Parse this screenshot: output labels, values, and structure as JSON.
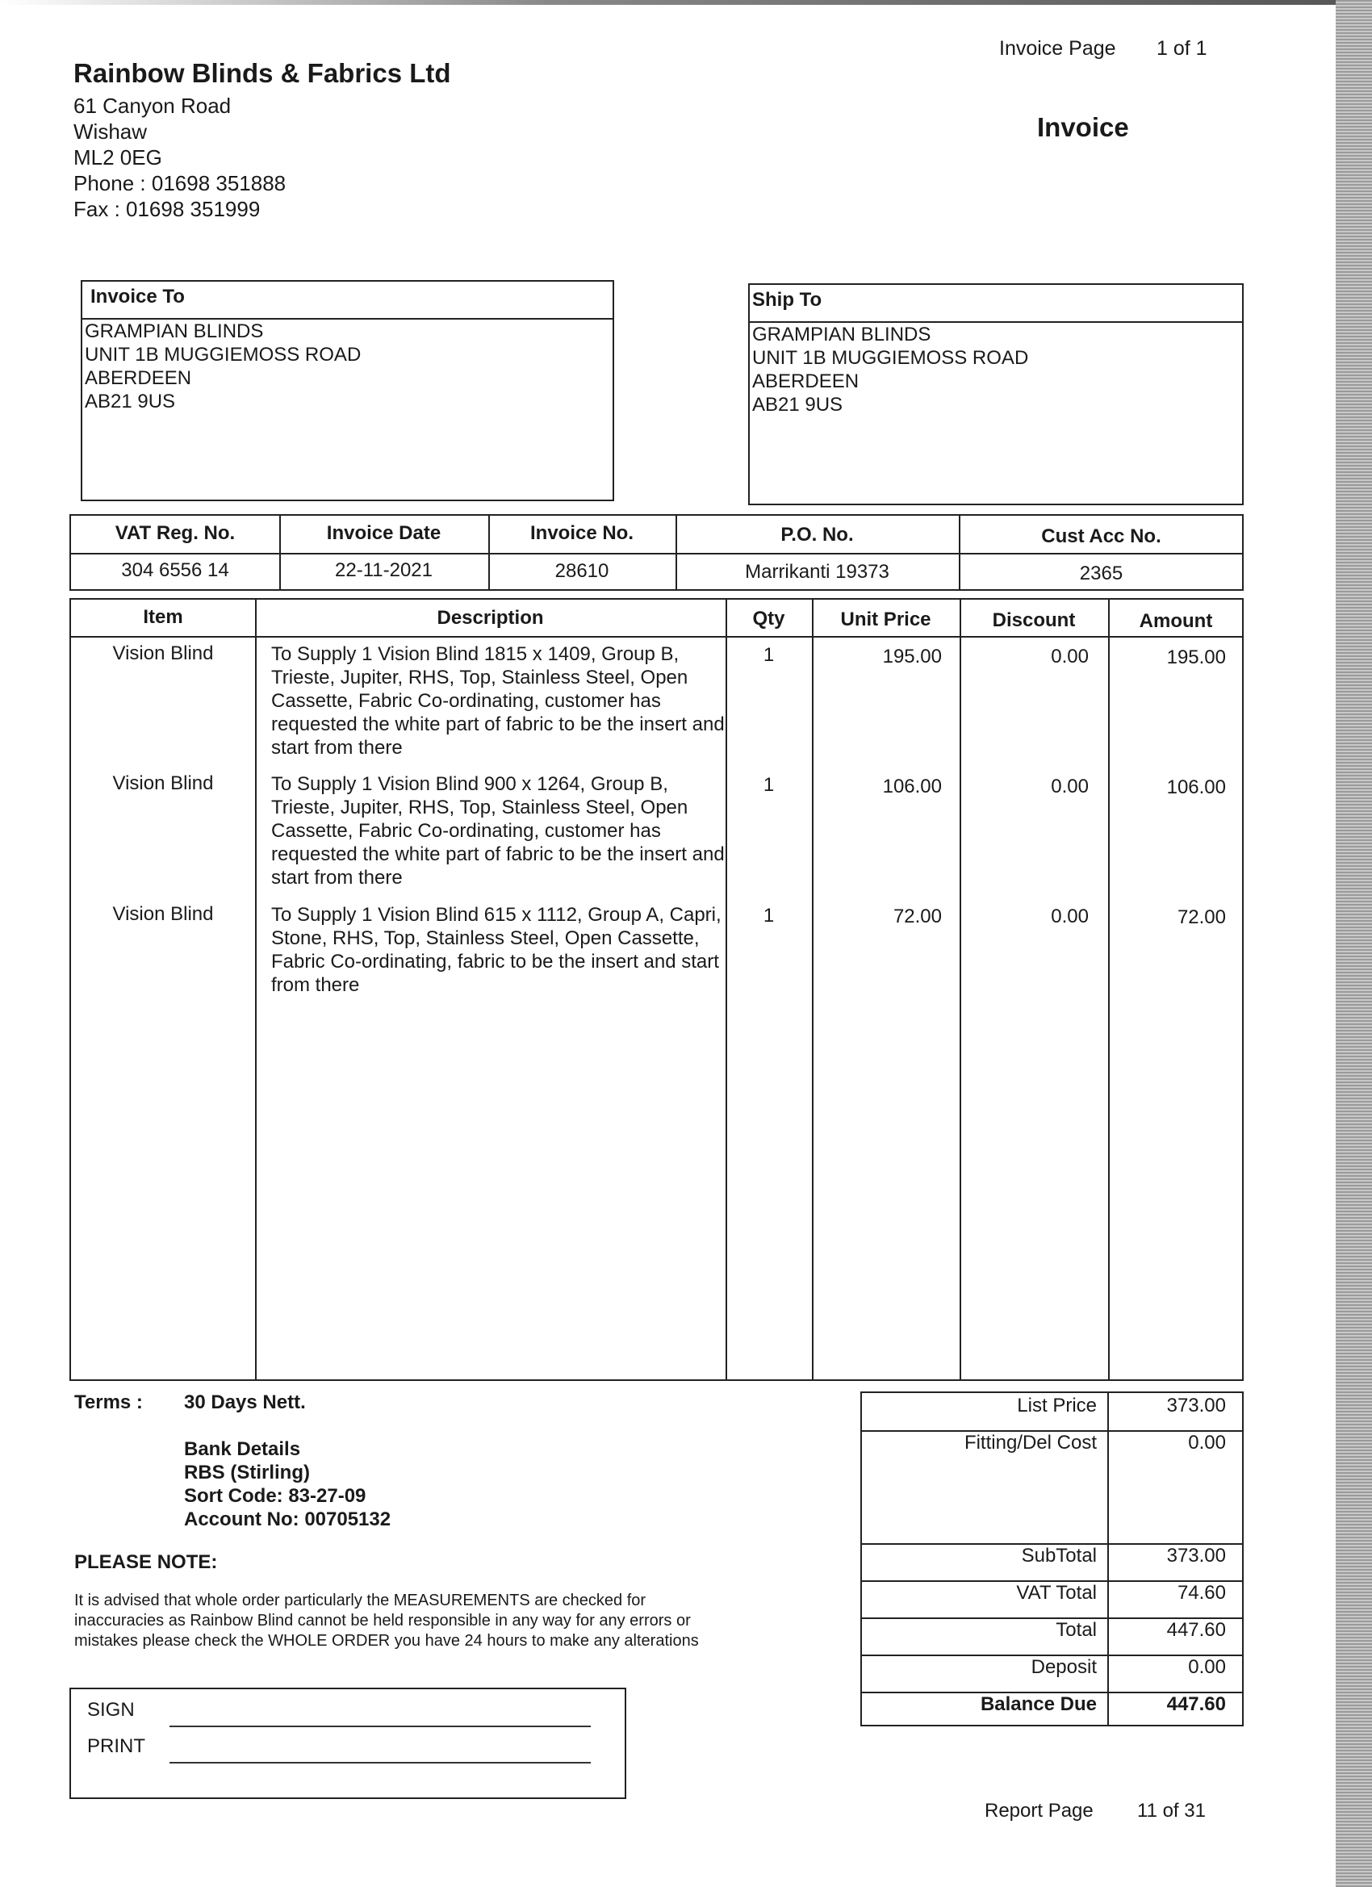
{
  "header": {
    "invoice_page_label": "Invoice Page",
    "invoice_page_value": "1 of 1",
    "doc_title": "Invoice"
  },
  "company": {
    "name": "Rainbow Blinds & Fabrics Ltd",
    "address": [
      "61 Canyon Road",
      "Wishaw",
      "ML2 0EG"
    ],
    "phone": "Phone : 01698 351888",
    "fax": "Fax : 01698 351999"
  },
  "invoice_to": {
    "label": "Invoice To",
    "lines": [
      "GRAMPIAN BLINDS",
      "UNIT 1B MUGGIEMOSS ROAD",
      "ABERDEEN",
      "AB21 9US"
    ]
  },
  "ship_to": {
    "label": "Ship To",
    "lines": [
      "GRAMPIAN BLINDS",
      "UNIT 1B MUGGIEMOSS ROAD",
      "ABERDEEN",
      "AB21 9US"
    ]
  },
  "info": {
    "headers": [
      "VAT Reg. No.",
      "Invoice Date",
      "Invoice No.",
      "P.O. No.",
      "Cust Acc No."
    ],
    "values": [
      "304 6556 14",
      "22-11-2021",
      "28610",
      "Marrikanti 19373",
      "2365"
    ]
  },
  "items": {
    "headers": [
      "Item",
      "Description",
      "Qty",
      "Unit Price",
      "Discount",
      "Amount"
    ],
    "rows": [
      {
        "item": "Vision Blind",
        "desc": "To Supply 1 Vision Blind  1815 x 1409, Group B, Trieste, Jupiter, RHS, Top, Stainless Steel, Open Cassette, Fabric Co-ordinating, customer has requested the white part of fabric to be the insert and start from there",
        "qty": "1",
        "unit": "195.00",
        "discount": "0.00",
        "amount": "195.00"
      },
      {
        "item": "Vision Blind",
        "desc": "To Supply 1 Vision Blind  900 x 1264, Group B, Trieste, Jupiter, RHS, Top, Stainless Steel, Open Cassette, Fabric Co-ordinating, customer has requested the white part of fabric to be the insert and start from there",
        "qty": "1",
        "unit": "106.00",
        "discount": "0.00",
        "amount": "106.00"
      },
      {
        "item": "Vision Blind",
        "desc": "To Supply 1 Vision Blind  615 x 1112, Group A, Capri, Stone, RHS, Top, Stainless Steel, Open Cassette, Fabric Co-ordinating, fabric to be the insert and start from there",
        "qty": "1",
        "unit": "72.00",
        "discount": "0.00",
        "amount": "72.00"
      }
    ]
  },
  "terms": {
    "label": "Terms :",
    "value": "30 Days Nett.",
    "bank": [
      "Bank Details",
      "RBS (Stirling)",
      "Sort Code: 83-27-09",
      "Account No: 00705132"
    ]
  },
  "note": {
    "title": "PLEASE NOTE:",
    "lines": [
      "It is advised that whole order particularly the MEASUREMENTS are checked for",
      "inaccuracies as Rainbow Blind cannot be held responsible in any way for any errors or",
      "mistakes please check the WHOLE ORDER you have 24 hours to make any alterations"
    ]
  },
  "sign": {
    "sign_label": "SIGN",
    "print_label": "PRINT"
  },
  "totals": [
    {
      "label": "List Price",
      "value": "373.00"
    },
    {
      "label": "Fitting/Del Cost",
      "value": "0.00"
    },
    {
      "label": "SubTotal",
      "value": "373.00"
    },
    {
      "label": "VAT Total",
      "value": "74.60"
    },
    {
      "label": "Total",
      "value": "447.60"
    },
    {
      "label": "Deposit",
      "value": "0.00"
    },
    {
      "label": "Balance Due",
      "value": "447.60"
    }
  ],
  "footer": {
    "report_page_label": "Report Page",
    "report_page_value": "11 of 31"
  }
}
